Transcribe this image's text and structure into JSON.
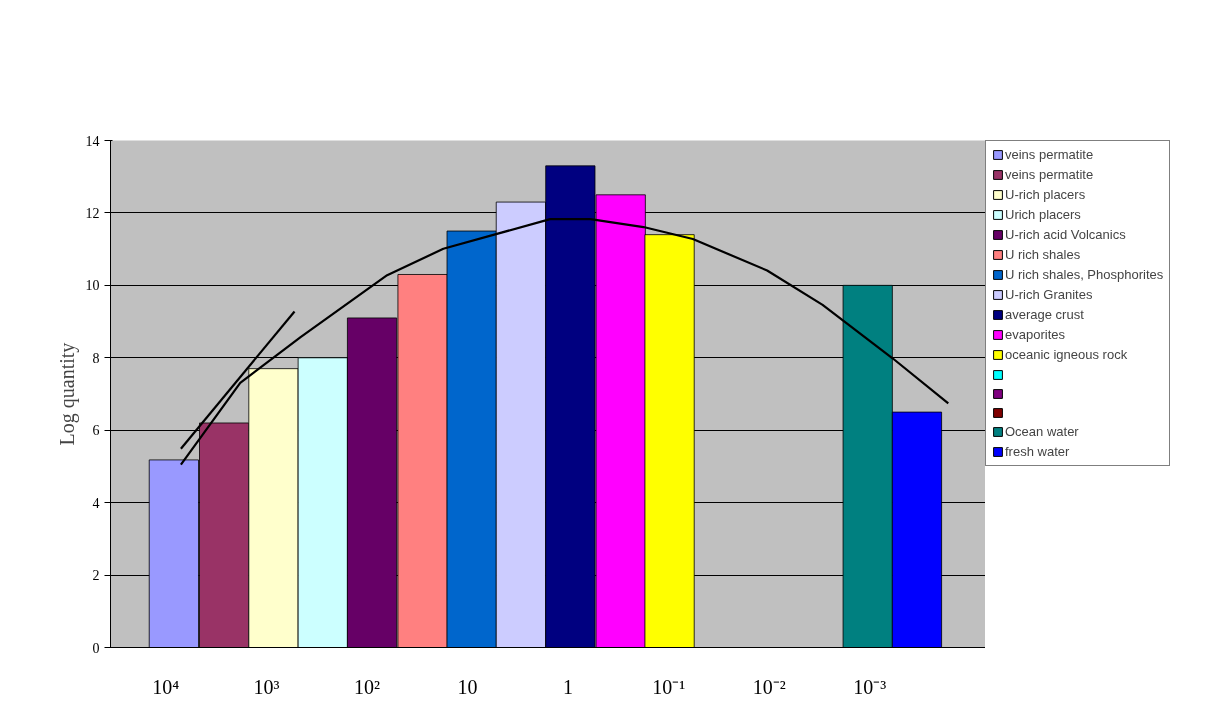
{
  "chart_data": {
    "type": "bar",
    "ylabel": "Log quantity",
    "log": "x",
    "xlim": [
      35481,
      7.08e-05
    ],
    "xticks": [
      {
        "value": 10000,
        "label": "10⁴"
      },
      {
        "value": 1000,
        "label": "10³"
      },
      {
        "value": 100,
        "label": "10²"
      },
      10,
      1,
      {
        "value": 0.1,
        "label": "10⁻¹"
      },
      {
        "value": 0.01,
        "label": "10⁻²"
      },
      {
        "value": 0.001,
        "label": "10⁻³"
      }
    ],
    "ylim": [
      0,
      14
    ],
    "yticks": [
      0,
      2,
      4,
      6,
      8,
      10,
      12,
      14
    ],
    "grid": "y",
    "legend": "right",
    "series": [
      {
        "name": "veins permatite",
        "color": "#9999ff",
        "x": [
          8318
        ],
        "values": [
          5.18
        ]
      },
      {
        "name": "veins permatite",
        "color": "#993366",
        "x": [
          2630
        ],
        "values": [
          6.2
        ]
      },
      {
        "name": "U-rich placers",
        "color": "#ffffcc",
        "x": [
          851
        ],
        "values": [
          7.7
        ]
      },
      {
        "name": "Urich placers",
        "color": "#ccffff",
        "x": [
          275
        ],
        "values": [
          8.0
        ]
      },
      {
        "name": "U-rich acid Volcanics",
        "color": "#660066",
        "x": [
          89
        ],
        "values": [
          9.1
        ]
      },
      {
        "name": "U rich shales",
        "color": "#ff8080",
        "x": [
          28
        ],
        "values": [
          10.3
        ]
      },
      {
        "name": "U rich shales, Phosphorites",
        "color": "#0066cc",
        "x": [
          9.1
        ],
        "values": [
          11.5
        ]
      },
      {
        "name": "U-rich Granites",
        "color": "#ccccff",
        "x": [
          2.95
        ],
        "values": [
          12.3
        ]
      },
      {
        "name": "average crust",
        "color": "#000080",
        "x": [
          0.95
        ],
        "values": [
          13.3
        ]
      },
      {
        "name": "evaporites",
        "color": "#ff00ff",
        "x": [
          0.3
        ],
        "values": [
          12.5
        ]
      },
      {
        "name": "oceanic igneous rock",
        "color": "#ffff00",
        "x": [
          0.098
        ],
        "values": [
          11.4
        ]
      },
      {
        "color": "#00ffff",
        "values": [
          null
        ]
      },
      {
        "color": "#800080",
        "values": [
          null
        ]
      },
      {
        "color": "#800000",
        "values": [
          null
        ]
      },
      {
        "name": "Ocean water",
        "color": "#008080",
        "x": [
          0.00105
        ],
        "values": [
          10.0
        ]
      },
      {
        "name": "fresh water",
        "color": "#0000ff",
        "x": [
          0.00034
        ],
        "values": [
          6.5
        ]
      },
      {
        "type": "line",
        "color": "#000000",
        "x": [
          7079,
          1820,
          457,
          63,
          17.4,
          1.51,
          0.6,
          0.178,
          0.0575,
          0.0105,
          0.00295,
          0.00059,
          0.000166
        ],
        "values": [
          5.05,
          7.31,
          8.57,
          10.28,
          11.01,
          11.83,
          11.83,
          11.61,
          11.28,
          10.41,
          9.46,
          7.98,
          6.74
        ]
      },
      {
        "type": "line",
        "color": "#000000",
        "x": [
          7079,
          525
        ],
        "values": [
          5.49,
          9.28
        ]
      }
    ]
  }
}
